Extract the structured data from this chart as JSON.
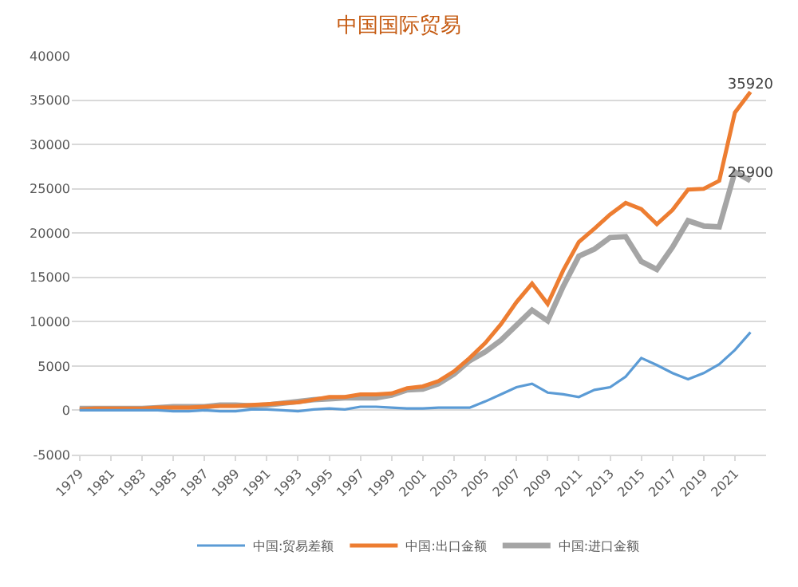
{
  "chart_data": {
    "type": "line",
    "title": "中国国际贸易",
    "x": [
      1979,
      1980,
      1981,
      1982,
      1983,
      1984,
      1985,
      1986,
      1987,
      1988,
      1989,
      1990,
      1991,
      1992,
      1993,
      1994,
      1995,
      1996,
      1997,
      1998,
      1999,
      2000,
      2001,
      2002,
      2003,
      2004,
      2005,
      2006,
      2007,
      2008,
      2009,
      2010,
      2011,
      2012,
      2013,
      2014,
      2015,
      2016,
      2017,
      2018,
      2019,
      2020,
      2021,
      2022
    ],
    "series": [
      {
        "name": "中国:贸易差额",
        "color": "#5b9bd5",
        "values": [
          0,
          0,
          0,
          0,
          0,
          0,
          -100,
          -100,
          0,
          -100,
          -100,
          100,
          100,
          0,
          -100,
          100,
          200,
          100,
          400,
          400,
          300,
          200,
          200,
          300,
          300,
          300,
          1000,
          1800,
          2600,
          3000,
          2000,
          1800,
          1500,
          2300,
          2600,
          3800,
          5900,
          5100,
          4200,
          3500,
          4200,
          5200,
          6800,
          8800
        ]
      },
      {
        "name": "中国:出口金额",
        "color": "#ed7d31",
        "values": [
          100,
          200,
          200,
          200,
          200,
          300,
          300,
          300,
          400,
          500,
          500,
          600,
          700,
          800,
          900,
          1200,
          1500,
          1500,
          1800,
          1800,
          1900,
          2500,
          2700,
          3300,
          4400,
          5900,
          7600,
          9700,
          12200,
          14300,
          12000,
          15800,
          19000,
          20500,
          22100,
          23400,
          22700,
          21000,
          22600,
          24900,
          25000,
          25900,
          33600,
          35920
        ],
        "value_labels": [
          null,
          null,
          null,
          null,
          null,
          null,
          null,
          null,
          null,
          null,
          null,
          null,
          null,
          null,
          null,
          null,
          null,
          null,
          null,
          null,
          null,
          null,
          null,
          null,
          null,
          null,
          null,
          null,
          null,
          null,
          null,
          null,
          null,
          null,
          null,
          null,
          null,
          null,
          null,
          null,
          null,
          null,
          null,
          "35920"
        ]
      },
      {
        "name": "中国:进口金额",
        "color": "#a5a5a5",
        "values": [
          200,
          200,
          200,
          200,
          200,
          300,
          400,
          400,
          400,
          600,
          600,
          500,
          600,
          800,
          1000,
          1200,
          1300,
          1400,
          1400,
          1400,
          1700,
          2300,
          2400,
          3000,
          4100,
          5600,
          6600,
          7900,
          9600,
          11300,
          10100,
          14000,
          17400,
          18200,
          19500,
          19600,
          16800,
          15900,
          18400,
          21400,
          20800,
          20700,
          26900,
          25900
        ],
        "value_labels": [
          null,
          null,
          null,
          null,
          null,
          null,
          null,
          null,
          null,
          null,
          null,
          null,
          null,
          null,
          null,
          null,
          null,
          null,
          null,
          null,
          null,
          null,
          null,
          null,
          null,
          null,
          null,
          null,
          null,
          null,
          null,
          null,
          null,
          null,
          null,
          null,
          null,
          null,
          null,
          null,
          null,
          null,
          null,
          "25900"
        ]
      }
    ],
    "xlim": [
      1978.5,
      2023
    ],
    "xticks": [
      1979,
      1981,
      1983,
      1985,
      1987,
      1989,
      1991,
      1993,
      1995,
      1997,
      1999,
      2001,
      2003,
      2005,
      2007,
      2009,
      2011,
      2013,
      2015,
      2017,
      2019,
      2021
    ],
    "ylim": [
      -5000,
      40000
    ],
    "yticks": [
      -5000,
      0,
      5000,
      10000,
      15000,
      20000,
      25000,
      30000,
      35000,
      40000
    ],
    "grid": "y",
    "legend": "bottom",
    "marker": "none",
    "line_style": "solid"
  }
}
